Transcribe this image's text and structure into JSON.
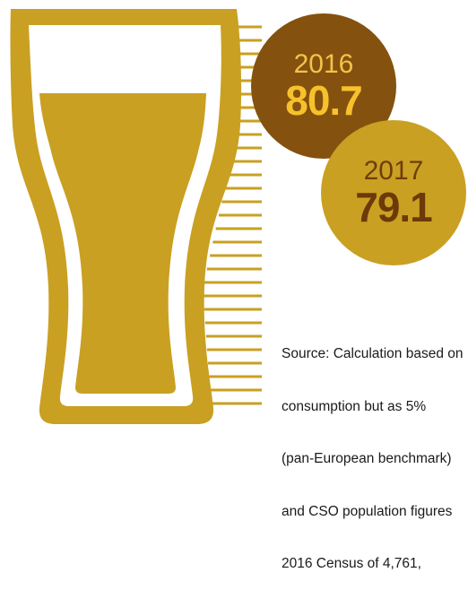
{
  "readings": [
    {
      "year": "2016",
      "value": "80.7"
    },
    {
      "year": "2017",
      "value": "79.1"
    }
  ],
  "source_lines": [
    "Source: Calculation based on",
    "consumption but as 5%",
    "(pan-European benchmark)",
    "and CSO population figures",
    "2016 Census of 4,761,"
  ],
  "colors": {
    "glass": "#c9a022",
    "circle_2016": "#84520e",
    "circle_2017": "#c9a022",
    "text_2016": "#f7c12c",
    "text_2017": "#6b3a08"
  },
  "icons": {
    "glass": "pint-glass-icon"
  }
}
